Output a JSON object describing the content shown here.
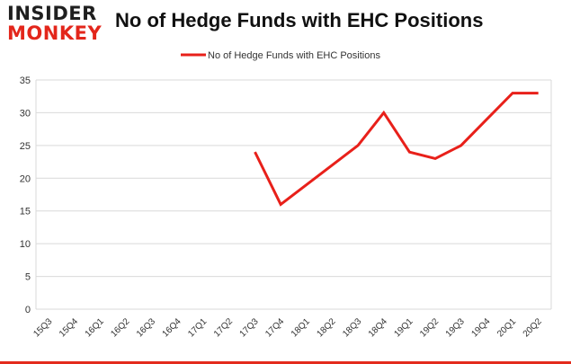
{
  "logo": {
    "line1": "INSIDER",
    "line2": "MONKEY"
  },
  "colors": {
    "series": "#e8201a",
    "grid": "#d9d9d9",
    "logo_red": "#e3261b",
    "bottom_border": "#e32b1c"
  },
  "chart_data": {
    "type": "line",
    "title": "No of Hedge Funds with EHC Positions",
    "categories": [
      "15Q3",
      "15Q4",
      "16Q1",
      "16Q2",
      "16Q3",
      "16Q4",
      "17Q1",
      "17Q2",
      "17Q3",
      "17Q4",
      "18Q1",
      "18Q2",
      "18Q3",
      "18Q4",
      "19Q1",
      "19Q2",
      "19Q3",
      "19Q4",
      "20Q1",
      "20Q2"
    ],
    "series": [
      {
        "name": "No of Hedge Funds with EHC Positions",
        "values": [
          null,
          null,
          null,
          null,
          null,
          null,
          null,
          null,
          24,
          16,
          19,
          22,
          25,
          30,
          24,
          23,
          25,
          29,
          33,
          33
        ]
      }
    ],
    "ylim": [
      0,
      35
    ],
    "yticks": [
      0,
      5,
      10,
      15,
      20,
      25,
      30,
      35
    ],
    "grid": true,
    "legend": "top-center"
  }
}
